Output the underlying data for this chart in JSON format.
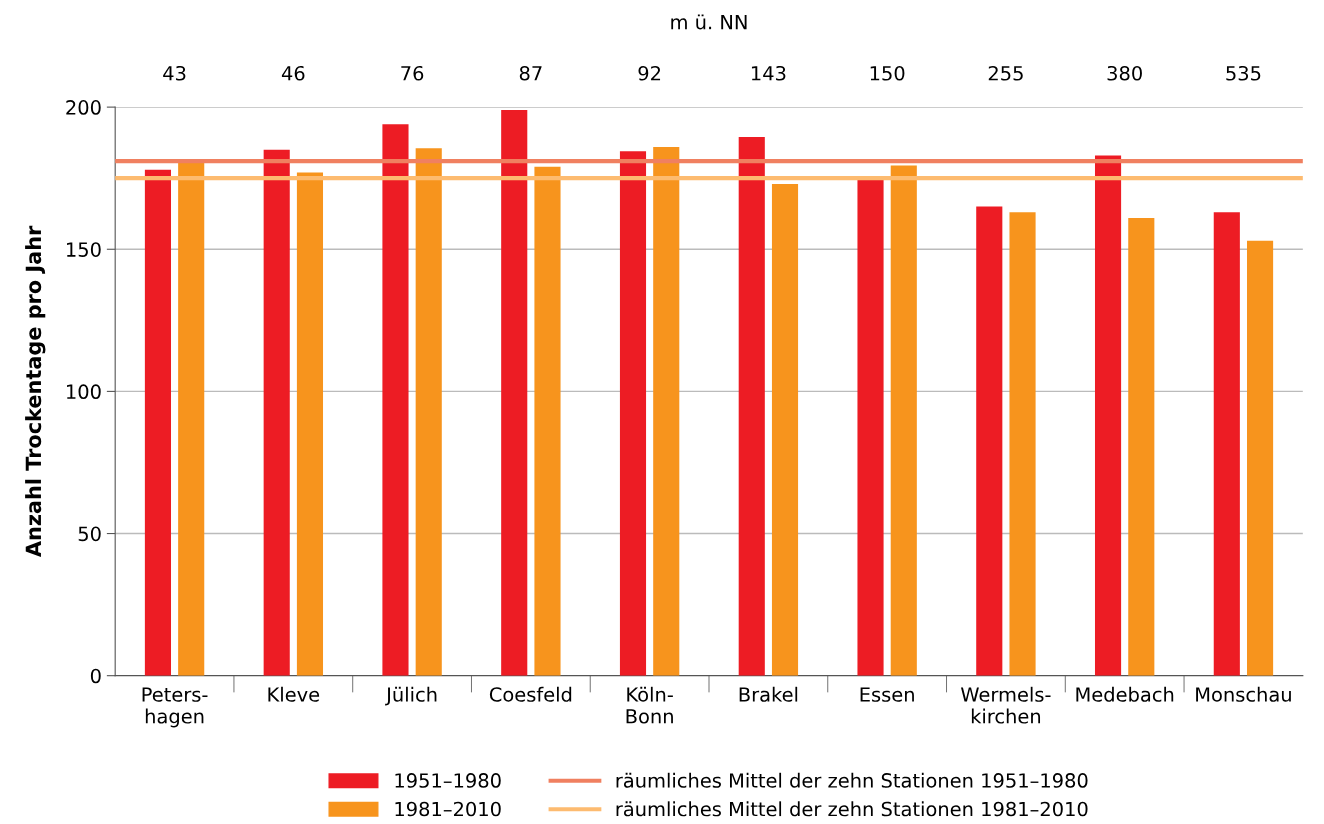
{
  "chart_data": {
    "type": "bar",
    "categories": [
      "Peters-\nhagen",
      "Kleve",
      "Jülich",
      "Coesfeld",
      "Köln-\nBonn",
      "Brakel",
      "Essen",
      "Wermels-\nkirchen",
      "Medebach",
      "Monschau"
    ],
    "series": [
      {
        "name": "1951–1980",
        "color": "#ed1c24",
        "values": [
          178,
          185,
          194,
          199,
          184.5,
          189.5,
          174.5,
          165,
          183,
          163
        ]
      },
      {
        "name": "1981–2010",
        "color": "#f7941d",
        "values": [
          181.5,
          177,
          185.5,
          179,
          186,
          173,
          179.5,
          163,
          161,
          153
        ]
      }
    ],
    "ylabel": "Anzahl Trockentage pro Jahr",
    "x2label": "m ü. NN",
    "annotations": [
      "43",
      "46",
      "76",
      "87",
      "92",
      "143",
      "150",
      "255",
      "380",
      "535"
    ],
    "ylim": [
      0,
      200
    ],
    "yticks": [
      0,
      50,
      100,
      150,
      200
    ],
    "ref_lines": [
      {
        "axis": "y",
        "value": 181,
        "label": "räumliches Mittel der zehn Stationen 1951–1980",
        "color": "#f08060"
      },
      {
        "axis": "y",
        "value": 175,
        "label": "räumliches Mittel der zehn Stationen 1981–2010",
        "color": "#fdbb70"
      }
    ],
    "grid": "y",
    "legend": "bottom"
  }
}
